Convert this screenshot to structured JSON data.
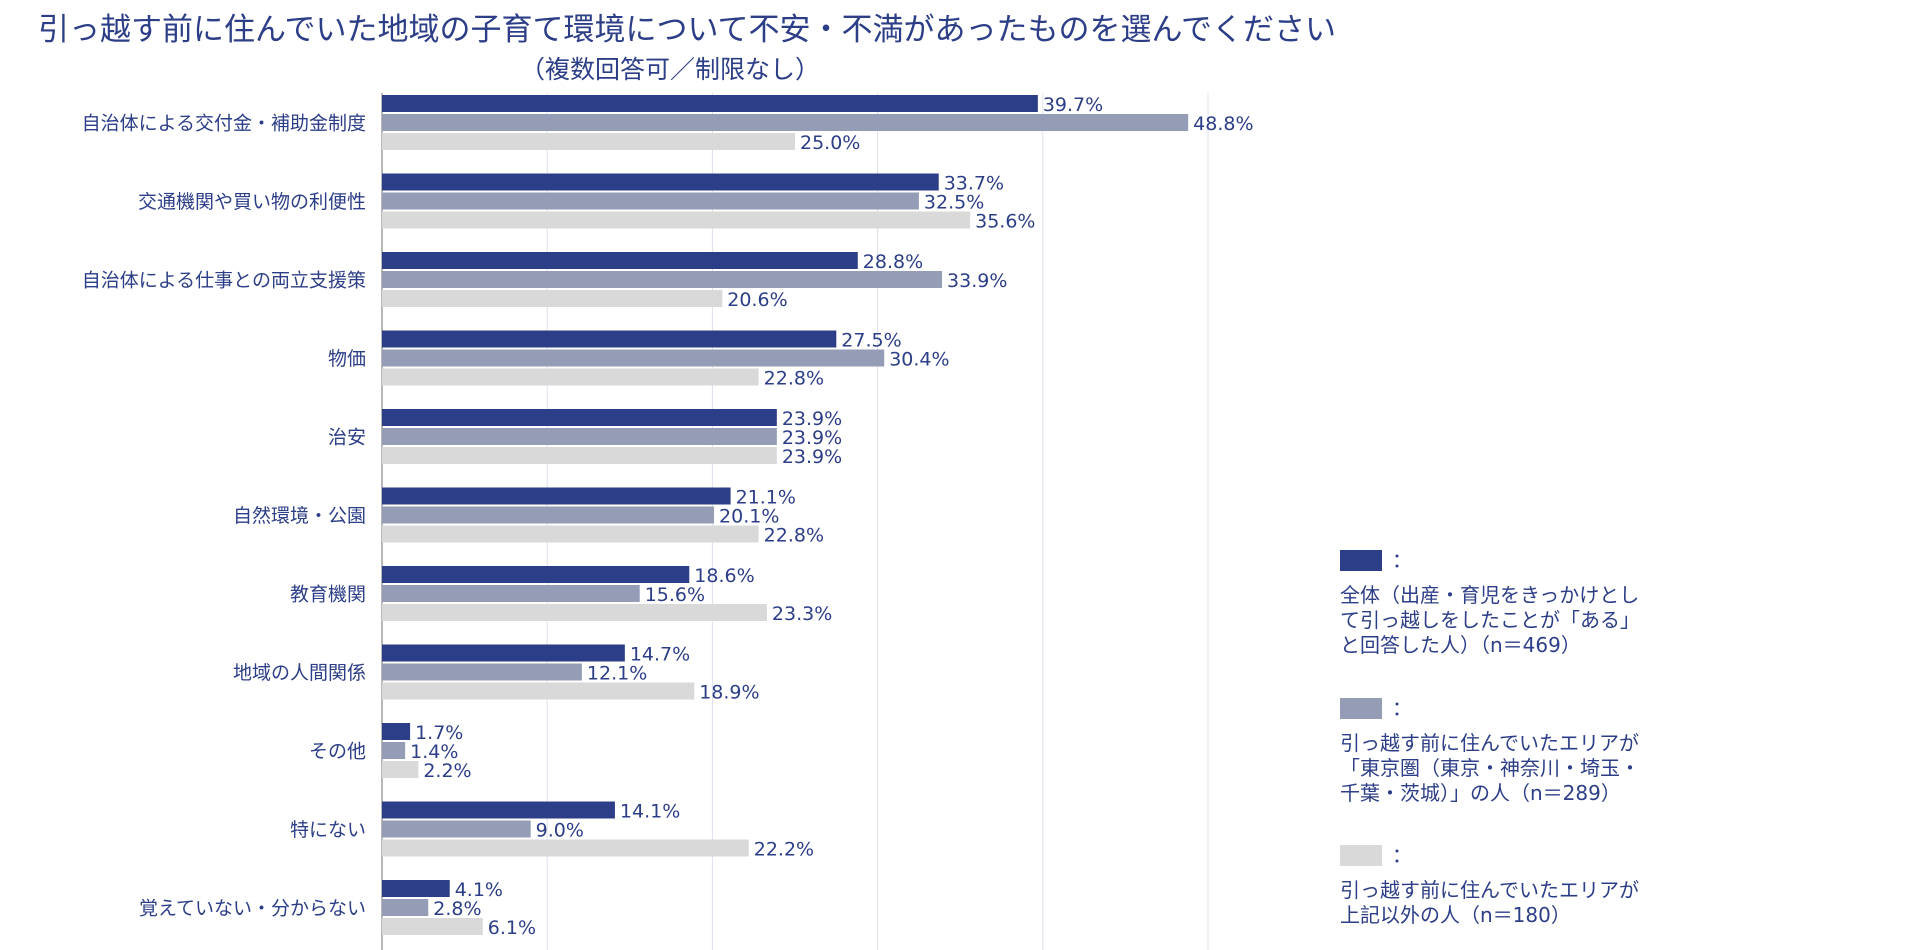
{
  "title": "引っ越す前に住んでいた地域の子育て環境について不安・不満があったものを選んでください",
  "subtitle": "（複数回答可／制限なし）",
  "legend": [
    {
      "marker": "：",
      "label": "全体（出産・育児をきっかけとして引っ越しをしたことが「ある」と回答した人）（n＝469）",
      "color": "#2c3e87"
    },
    {
      "marker": "：",
      "label": "引っ越す前に住んでいたエリアが「東京圏（東京・神奈川・埼玉・千葉・茨城）」の人（n＝289）",
      "color": "#949cb6"
    },
    {
      "marker": "：",
      "label": "引っ越す前に住んでいたエリアが上記以外の人（n＝180）",
      "color": "#d9d9d9"
    }
  ],
  "chart_data": {
    "type": "bar",
    "orientation": "horizontal",
    "categories": [
      "自治体による交付金・補助金制度",
      "交通機関や買い物の利便性",
      "自治体による仕事との両立支援策",
      "物価",
      "治安",
      "自然環境・公園",
      "教育機関",
      "地域の人間関係",
      "その他",
      "特にない",
      "覚えていない・分からない"
    ],
    "series": [
      {
        "name": "全体（出産・育児をきっかけとして引っ越しをしたことが「ある」と回答した人）（n＝469）",
        "color": "#2c3e87",
        "values": [
          39.7,
          33.7,
          28.8,
          27.5,
          23.9,
          21.1,
          18.6,
          14.7,
          1.7,
          14.1,
          4.1
        ]
      },
      {
        "name": "引っ越す前に住んでいたエリアが「東京圏（東京・神奈川・埼玉・千葉・茨城）」の人（n＝289）",
        "color": "#949cb6",
        "values": [
          48.8,
          32.5,
          33.9,
          30.4,
          23.9,
          20.1,
          15.6,
          12.1,
          1.4,
          9.0,
          2.8
        ]
      },
      {
        "name": "引っ越す前に住んでいたエリアが上記以外の人（n＝180）",
        "color": "#d9d9d9",
        "values": [
          25.0,
          35.6,
          20.6,
          22.8,
          23.9,
          22.8,
          23.3,
          18.9,
          2.2,
          22.2,
          6.1
        ]
      }
    ],
    "xlim": [
      0,
      50
    ],
    "xticks": [
      "0.0%",
      "10.0%",
      "20.0%",
      "30.0%",
      "40.0%",
      "50.0%"
    ],
    "value_suffix": "%",
    "grid": true
  }
}
